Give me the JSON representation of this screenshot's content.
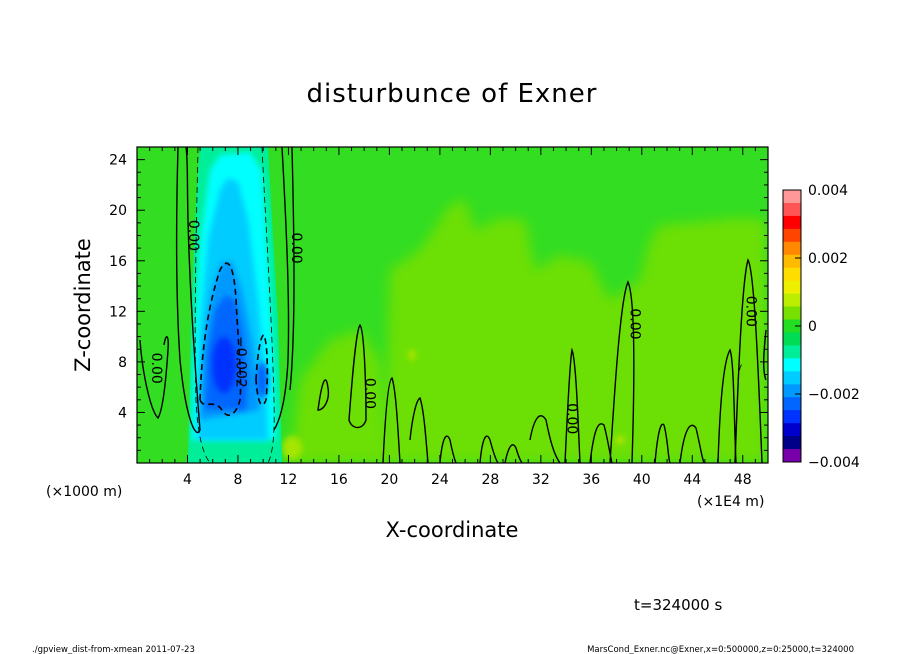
{
  "chart_data": {
    "type": "heatmap",
    "title": "disturbunce of Exner",
    "xlabel": "X-coordinate",
    "ylabel": "Z-coordinate",
    "x_unit_label": "(×1000 m)",
    "x_multiplier_label": "(×1E4 m)",
    "xlim": [
      0,
      500000
    ],
    "ylim": [
      0,
      25000
    ],
    "x_ticks": [
      4,
      8,
      12,
      16,
      20,
      24,
      28,
      32,
      36,
      40,
      44,
      48
    ],
    "y_ticks": [
      4,
      8,
      12,
      16,
      20,
      24
    ],
    "colorbar": {
      "range": [
        -0.004,
        0.004
      ],
      "tick_labels": [
        "0.004",
        "0.002",
        "0",
        "−0.002",
        "−0.004"
      ],
      "tick_values": [
        0.004,
        0.002,
        0,
        -0.002,
        -0.004
      ],
      "colors": [
        "#ff9999",
        "#ff5555",
        "#ff0000",
        "#ff4400",
        "#ff8800",
        "#ffbb00",
        "#ffdd00",
        "#eeee00",
        "#bbee00",
        "#77e000",
        "#22dd22",
        "#00dd55",
        "#00ee99",
        "#00ffff",
        "#00ccff",
        "#0099ff",
        "#0066ff",
        "#0033ff",
        "#0000cc",
        "#000088",
        "#7700aa"
      ]
    },
    "contour_labels": [
      {
        "text": "0.00",
        "x": 1.2,
        "z": 7.5
      },
      {
        "text": "0.00",
        "x": 4.1,
        "z": 18
      },
      {
        "text": "−0.002",
        "x": 7.9,
        "z": 8
      },
      {
        "text": "0.00",
        "x": 12.3,
        "z": 17
      },
      {
        "text": "0.00",
        "x": 18.1,
        "z": 5.5
      },
      {
        "text": "0.00",
        "x": 34.1,
        "z": 3.5
      },
      {
        "text": "0.00",
        "x": 39.1,
        "z": 11
      },
      {
        "text": "0.00",
        "x": 48.3,
        "z": 12
      }
    ],
    "time_label": "t=324000 s"
  },
  "footer": {
    "left": "./gpview_dist-from-xmean  2011-07-23",
    "right": "MarsCond_Exner.nc@Exner,x=0:500000,z=0:25000,t=324000"
  }
}
